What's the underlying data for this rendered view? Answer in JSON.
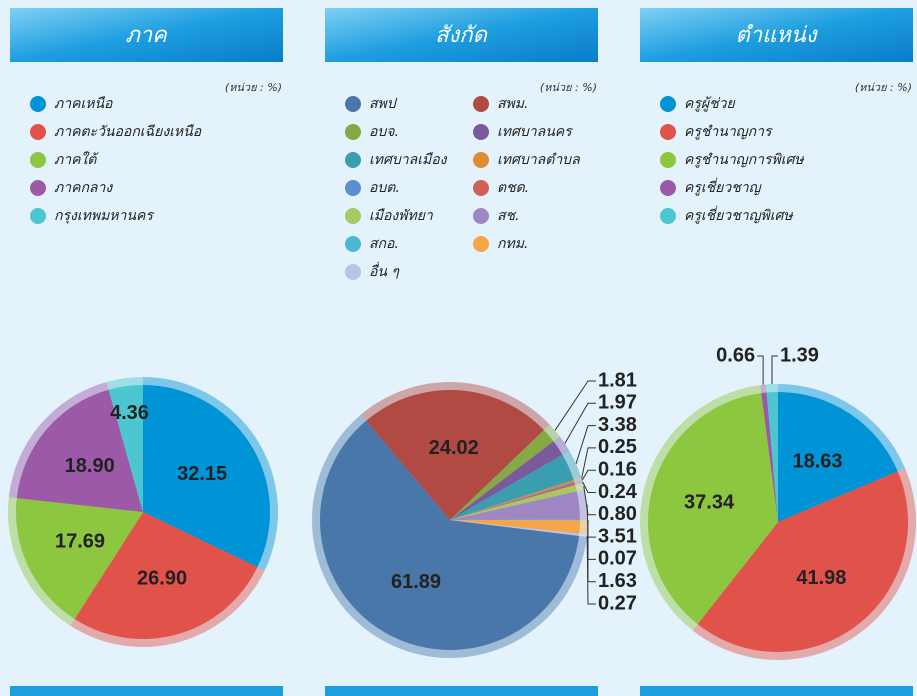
{
  "chart_data": [
    {
      "type": "pie",
      "title": "ภาค",
      "unit_label": "(หน่วย : %)",
      "categories": [
        "ภาคเหนือ",
        "ภาคตะวันออกเฉียงเหนือ",
        "ภาคใต้",
        "ภาคกลาง",
        "กรุงเทพมหานคร"
      ],
      "values": [
        32.15,
        26.9,
        17.69,
        18.9,
        4.36
      ],
      "value_labels": [
        "32.15",
        "26.90",
        "17.69",
        "18.90",
        "4.36"
      ],
      "colors": [
        "#0093d5",
        "#e0524a",
        "#8dc63f",
        "#9b59a8",
        "#4cc6cf"
      ]
    },
    {
      "type": "pie",
      "title": "สังกัด",
      "unit_label": "(หน่วย : %)",
      "categories": [
        "สพป",
        "สพม.",
        "อบจ.",
        "เทศบาลนคร",
        "เทศบาลเมือง",
        "เทศบาลตำบล",
        "อบต.",
        "ตชด.",
        "เมืองพัทยา",
        "สช.",
        "สกอ.",
        "กทม.",
        "อื่น ๆ"
      ],
      "values": [
        61.89,
        24.02,
        1.81,
        1.97,
        3.38,
        0.25,
        0.16,
        0.24,
        0.8,
        3.51,
        0.07,
        1.63,
        0.27
      ],
      "value_labels": [
        "61.89",
        "24.02",
        "1.81",
        "1.97",
        "3.38",
        "0.25",
        "0.16",
        "0.24",
        "0.80",
        "3.51",
        "0.07",
        "1.63",
        "0.27"
      ],
      "colors": [
        "#4a77aa",
        "#b04a43",
        "#86a845",
        "#7a5a9c",
        "#3a9db0",
        "#de8b33",
        "#5b8fcf",
        "#d0605a",
        "#a8c864",
        "#9f87c4",
        "#4ab8d4",
        "#f5a54a",
        "#b8c4e2"
      ]
    },
    {
      "type": "pie",
      "title": "ตำแหน่ง",
      "unit_label": "(หน่วย : %)",
      "categories": [
        "ครูผู้ช่วย",
        "ครูชำนาญการ",
        "ครูชำนาญการพิเศษ",
        "ครูเชี่ยวชาญ",
        "ครูเชี่ยวชาญพิเศษ"
      ],
      "values": [
        18.63,
        41.98,
        37.34,
        0.66,
        1.39
      ],
      "value_labels": [
        "18.63",
        "41.98",
        "37.34",
        "0.66",
        "1.39"
      ],
      "colors": [
        "#0093d5",
        "#e0524a",
        "#8dc63f",
        "#9b59a8",
        "#4cc6cf"
      ]
    }
  ]
}
